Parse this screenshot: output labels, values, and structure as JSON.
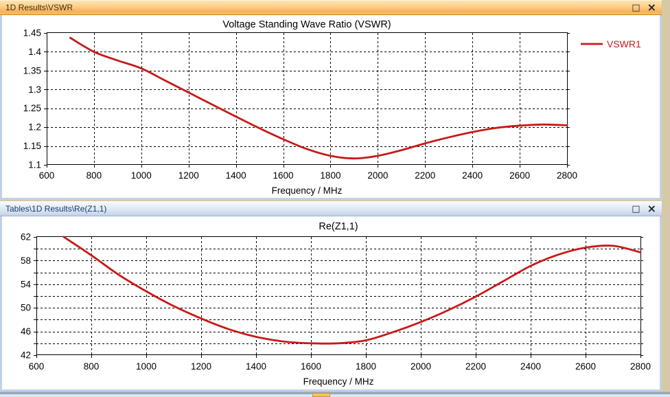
{
  "app": {
    "desktop_color": "#D5C9A6",
    "curve_color": "#C81919"
  },
  "windows": [
    {
      "title": "1D Results\\VSWR",
      "state": "active",
      "controls": {
        "maximize": "□",
        "close": "×"
      }
    },
    {
      "title": "Tables\\1D Results\\Re(Z1,1)",
      "state": "inactive",
      "controls": {
        "maximize": "□",
        "close": "×"
      }
    }
  ],
  "chart_data": [
    {
      "type": "line",
      "title": "Voltage Standing Wave Ratio (VSWR)",
      "xlabel": "Frequency / MHz",
      "ylabel": "",
      "xlim": [
        600,
        2800
      ],
      "ylim": [
        1.1,
        1.45
      ],
      "grid": "dashed",
      "x_ticks": [
        600,
        800,
        1000,
        1200,
        1400,
        1600,
        1800,
        2000,
        2200,
        2400,
        2600,
        2800
      ],
      "y_ticks": [
        {
          "v": 1.1,
          "label": "1.1"
        },
        {
          "v": 1.15,
          "label": "1.15"
        },
        {
          "v": 1.2,
          "label": "1.2"
        },
        {
          "v": 1.25,
          "label": "1.25"
        },
        {
          "v": 1.3,
          "label": "1.3"
        },
        {
          "v": 1.35,
          "label": "1.35"
        },
        {
          "v": 1.4,
          "label": "1.4"
        },
        {
          "v": 1.45,
          "label": "1.45"
        }
      ],
      "legend": {
        "position": "right",
        "entries": [
          {
            "label": "VSWR1",
            "color": "#C81919"
          }
        ]
      },
      "series": [
        {
          "name": "VSWR1",
          "color": "#C81919",
          "points": [
            [
              700,
              1.437
            ],
            [
              800,
              1.4
            ],
            [
              900,
              1.377
            ],
            [
              1000,
              1.356
            ],
            [
              1100,
              1.324
            ],
            [
              1200,
              1.292
            ],
            [
              1300,
              1.26
            ],
            [
              1400,
              1.228
            ],
            [
              1500,
              1.197
            ],
            [
              1600,
              1.168
            ],
            [
              1700,
              1.142
            ],
            [
              1800,
              1.124
            ],
            [
              1900,
              1.117
            ],
            [
              2000,
              1.124
            ],
            [
              2100,
              1.139
            ],
            [
              2200,
              1.157
            ],
            [
              2300,
              1.173
            ],
            [
              2400,
              1.187
            ],
            [
              2500,
              1.198
            ],
            [
              2600,
              1.204
            ],
            [
              2700,
              1.207
            ],
            [
              2800,
              1.205
            ]
          ]
        }
      ]
    },
    {
      "type": "line",
      "title": "Re(Z1,1)",
      "xlabel": "Frequency / MHz",
      "ylabel": "",
      "xlim": [
        600,
        2800
      ],
      "ylim": [
        42,
        62
      ],
      "grid": "dashed",
      "x_ticks": [
        600,
        800,
        1000,
        1200,
        1400,
        1600,
        1800,
        2000,
        2200,
        2400,
        2600,
        2800
      ],
      "y_ticks": [
        {
          "v": 42,
          "label": "42"
        },
        {
          "v": 44,
          "label": ""
        },
        {
          "v": 46,
          "label": "46"
        },
        {
          "v": 48,
          "label": ""
        },
        {
          "v": 50,
          "label": "50"
        },
        {
          "v": 52,
          "label": ""
        },
        {
          "v": 54,
          "label": "54"
        },
        {
          "v": 56,
          "label": ""
        },
        {
          "v": 58,
          "label": "58"
        },
        {
          "v": 60,
          "label": ""
        },
        {
          "v": 62,
          "label": "62"
        }
      ],
      "legend": null,
      "series": [
        {
          "name": "Re(Z1,1)",
          "color": "#C81919",
          "points": [
            [
              700,
              62.0
            ],
            [
              800,
              58.9
            ],
            [
              900,
              55.6
            ],
            [
              1000,
              52.8
            ],
            [
              1100,
              50.3
            ],
            [
              1200,
              48.2
            ],
            [
              1300,
              46.4
            ],
            [
              1400,
              45.1
            ],
            [
              1500,
              44.3
            ],
            [
              1600,
              44.0
            ],
            [
              1700,
              44.0
            ],
            [
              1800,
              44.5
            ],
            [
              1900,
              45.9
            ],
            [
              2000,
              47.6
            ],
            [
              2100,
              49.6
            ],
            [
              2200,
              51.9
            ],
            [
              2300,
              54.5
            ],
            [
              2400,
              57.1
            ],
            [
              2500,
              59.0
            ],
            [
              2600,
              60.2
            ],
            [
              2700,
              60.5
            ],
            [
              2800,
              59.4
            ]
          ]
        }
      ]
    }
  ]
}
